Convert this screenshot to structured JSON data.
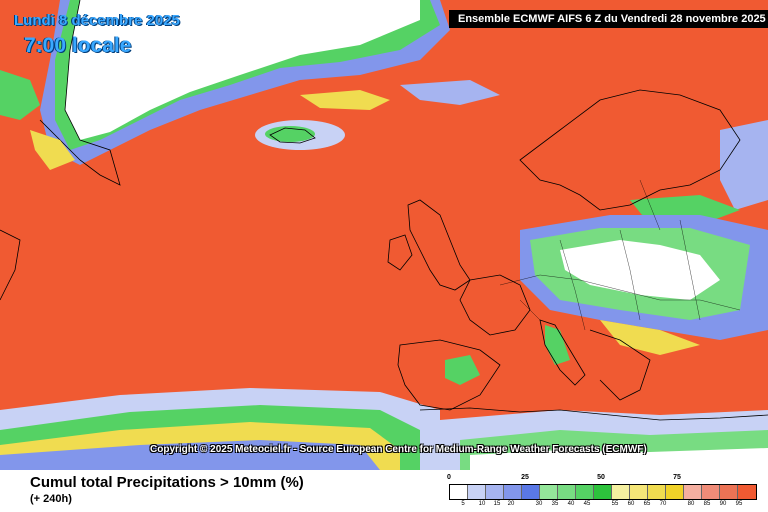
{
  "header": {
    "date": "Lundi 8 décembre 2025",
    "time": "7:00 locale"
  },
  "run_banner": "Ensemble ECMWF AIFS 6 Z du Vendredi 28 novembre 2025",
  "copyright": "Copyright © 2025 Meteociel.fr - Source European Centre for Medium-Range Weather Forecasts (ECMWF)",
  "parameter": {
    "title": "Cumul total Precipitations > 10mm (%)",
    "lead": "(+ 240h)"
  },
  "legend": {
    "major_labels": [
      "0",
      "25",
      "50",
      "75"
    ],
    "minor_labels": [
      "5",
      "10",
      "15",
      "20",
      "30",
      "35",
      "40",
      "45",
      "55",
      "60",
      "65",
      "70",
      "80",
      "85",
      "90",
      "95"
    ],
    "colors": [
      "#ffffff",
      "#c8d2f5",
      "#a6b4f0",
      "#8296eb",
      "#5a78e6",
      "#94e69a",
      "#78dc82",
      "#55d264",
      "#2dc33c",
      "#f5f0a0",
      "#f5e678",
      "#f0dc50",
      "#f0d228",
      "#f5afa0",
      "#f08c78",
      "#ec7355",
      "#f05a32"
    ]
  },
  "map_colors": {
    "high_probability": "#f05a32",
    "green_band": "#55d264",
    "yellow_band": "#f0dc50",
    "blue_band": "#8296eb",
    "land_zero": "#ffffff"
  }
}
